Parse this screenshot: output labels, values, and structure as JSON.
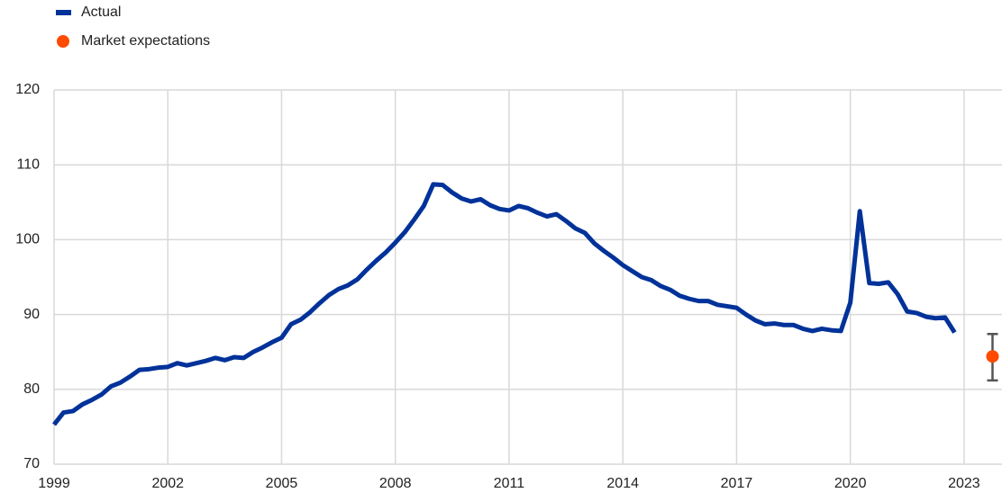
{
  "chart_data": {
    "type": "line",
    "x": [
      1999,
      1999.25,
      1999.5,
      1999.75,
      2000,
      2000.25,
      2000.5,
      2000.75,
      2001,
      2001.25,
      2001.5,
      2001.75,
      2002,
      2002.25,
      2002.5,
      2002.75,
      2003,
      2003.25,
      2003.5,
      2003.75,
      2004,
      2004.25,
      2004.5,
      2004.75,
      2005,
      2005.25,
      2005.5,
      2005.75,
      2006,
      2006.25,
      2006.5,
      2006.75,
      2007,
      2007.25,
      2007.5,
      2007.75,
      2008,
      2008.25,
      2008.5,
      2008.75,
      2009,
      2009.25,
      2009.5,
      2009.75,
      2010,
      2010.25,
      2010.5,
      2010.75,
      2011,
      2011.25,
      2011.5,
      2011.75,
      2012,
      2012.25,
      2012.5,
      2012.75,
      2013,
      2013.25,
      2013.5,
      2013.75,
      2014,
      2014.25,
      2014.5,
      2014.75,
      2015,
      2015.25,
      2015.5,
      2015.75,
      2016,
      2016.25,
      2016.5,
      2016.75,
      2017,
      2017.25,
      2017.5,
      2017.75,
      2018,
      2018.25,
      2018.5,
      2018.75,
      2019,
      2019.25,
      2019.5,
      2019.75,
      2020,
      2020.25,
      2020.5,
      2020.75,
      2021,
      2021.25,
      2021.5,
      2021.75,
      2022,
      2022.25,
      2022.5,
      2022.75
    ],
    "series": [
      {
        "name": "Actual",
        "color": "#003299",
        "values": [
          75.3,
          76.9,
          77.1,
          78.0,
          78.6,
          79.3,
          80.4,
          80.9,
          81.7,
          82.6,
          82.7,
          82.9,
          83.0,
          83.5,
          83.2,
          83.5,
          83.8,
          84.2,
          83.9,
          84.3,
          84.2,
          85.0,
          85.6,
          86.3,
          86.9,
          88.7,
          89.3,
          90.3,
          91.5,
          92.6,
          93.4,
          93.9,
          94.7,
          96.0,
          97.2,
          98.3,
          99.6,
          101.0,
          102.7,
          104.5,
          107.4,
          107.3,
          106.3,
          105.5,
          105.1,
          105.4,
          104.6,
          104.1,
          103.9,
          104.5,
          104.2,
          103.6,
          103.1,
          103.4,
          102.5,
          101.5,
          100.9,
          99.5,
          98.5,
          97.6,
          96.6,
          95.8,
          95.0,
          94.6,
          93.8,
          93.3,
          92.5,
          92.1,
          91.8,
          91.8,
          91.3,
          91.1,
          90.9,
          90.0,
          89.2,
          88.7,
          88.8,
          88.6,
          88.6,
          88.1,
          87.8,
          88.1,
          87.9,
          87.8,
          91.6,
          103.8,
          94.2,
          94.1,
          94.3,
          92.7,
          90.4,
          90.2,
          89.7,
          89.5,
          89.6,
          87.6
        ]
      },
      {
        "name": "Market expectations",
        "color": "#ff4b00",
        "style": "point",
        "x": [
          2023.75
        ],
        "values": [
          84.4
        ],
        "lower": [
          81.2
        ],
        "upper": [
          87.4
        ]
      }
    ],
    "xlim": [
      1999,
      2024
    ],
    "xticks": [
      1999,
      2002,
      2005,
      2008,
      2011,
      2014,
      2017,
      2020,
      2023
    ],
    "ylim": [
      70,
      120
    ],
    "yticks": [
      70,
      80,
      90,
      100,
      110,
      120
    ],
    "grid": true,
    "legend": "top-left"
  }
}
